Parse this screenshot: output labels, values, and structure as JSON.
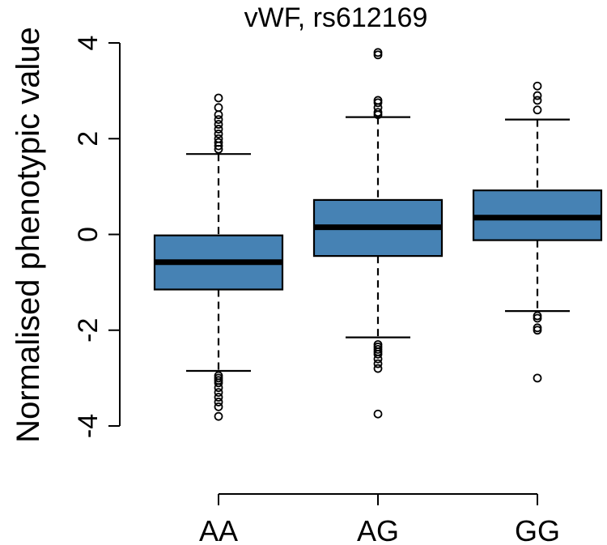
{
  "chart_data": {
    "type": "box",
    "title": "vWF, rs612169",
    "ylabel": "Normalised phenotypic value",
    "xlabel": "",
    "ylim": [
      -4,
      4
    ],
    "yticks": [
      -4,
      -2,
      0,
      2,
      4
    ],
    "ytick_labels": [
      "-4",
      "-2",
      "0",
      "2",
      "4"
    ],
    "categories": [
      "AA",
      "AG",
      "GG"
    ],
    "box_color": "#4682B4",
    "boxes": [
      {
        "category": "AA",
        "whisker_low": -2.85,
        "q1": -1.15,
        "median": -0.58,
        "q3": -0.02,
        "whisker_high": 1.68,
        "outliers": [
          -3.8,
          -3.6,
          -3.5,
          -3.4,
          -3.3,
          -3.2,
          -3.1,
          -3.05,
          -3.0,
          -2.95,
          1.78,
          1.85,
          1.92,
          2.0,
          2.1,
          2.2,
          2.3,
          2.4,
          2.5,
          2.65,
          2.85
        ]
      },
      {
        "category": "AG",
        "whisker_low": -2.15,
        "q1": -0.45,
        "median": 0.15,
        "q3": 0.72,
        "whisker_high": 2.45,
        "outliers": [
          -3.75,
          -2.8,
          -2.7,
          -2.6,
          -2.5,
          -2.45,
          -2.4,
          -2.35,
          -2.3,
          2.5,
          2.55,
          2.65,
          2.75,
          2.8,
          3.75,
          3.8
        ]
      },
      {
        "category": "GG",
        "whisker_low": -1.6,
        "q1": -0.12,
        "median": 0.35,
        "q3": 0.92,
        "whisker_high": 2.4,
        "outliers": [
          -3.0,
          -2.0,
          -1.95,
          -1.75,
          -1.7,
          2.6,
          2.8,
          2.9,
          3.1
        ]
      }
    ]
  }
}
